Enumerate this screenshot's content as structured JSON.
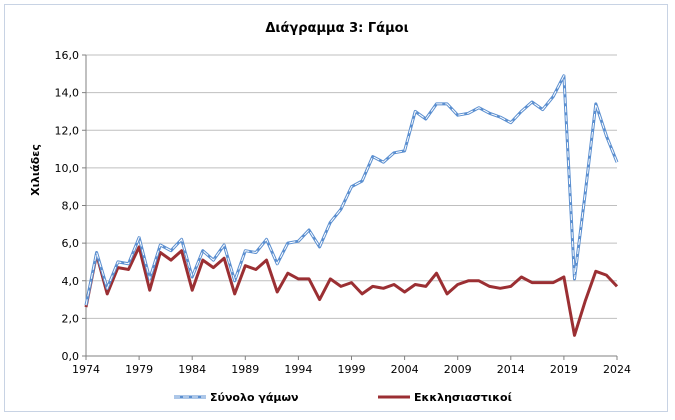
{
  "chart_data": {
    "type": "line",
    "title": "Διάγραμμα 3: Γάμοι",
    "xlabel": "",
    "ylabel": "Χιλιάδες",
    "xlim": [
      1974,
      2024
    ],
    "ylim": [
      0,
      16
    ],
    "x_ticks": [
      "1974",
      "1979",
      "1984",
      "1989",
      "1994",
      "1999",
      "2004",
      "2009",
      "2014",
      "2019",
      "2024"
    ],
    "y_ticks": [
      "0,0",
      "2,0",
      "4,0",
      "6,0",
      "8,0",
      "10,0",
      "12,0",
      "14,0",
      "16,0"
    ],
    "legend_position": "bottom",
    "x": [
      1974,
      1975,
      1976,
      1977,
      1978,
      1979,
      1980,
      1981,
      1982,
      1983,
      1984,
      1985,
      1986,
      1987,
      1988,
      1989,
      1990,
      1991,
      1992,
      1993,
      1994,
      1995,
      1996,
      1997,
      1998,
      1999,
      2000,
      2001,
      2002,
      2003,
      2004,
      2005,
      2006,
      2007,
      2008,
      2009,
      2010,
      2011,
      2012,
      2013,
      2014,
      2015,
      2016,
      2017,
      2018,
      2019,
      2020,
      2021,
      2022,
      2023,
      2024
    ],
    "series": [
      {
        "name": "Σύνολο γάμων",
        "color": "#5b8fd0",
        "dash": true,
        "values": [
          2.7,
          5.5,
          3.6,
          5.0,
          4.9,
          6.3,
          4.1,
          5.9,
          5.6,
          6.2,
          4.2,
          5.6,
          5.1,
          5.9,
          4.0,
          5.6,
          5.5,
          6.2,
          4.9,
          6.0,
          6.1,
          6.7,
          5.8,
          7.1,
          7.8,
          9.0,
          9.3,
          10.6,
          10.3,
          10.8,
          10.9,
          13.0,
          12.6,
          13.4,
          13.4,
          12.8,
          12.9,
          13.2,
          12.9,
          12.7,
          12.4,
          13.0,
          13.5,
          13.1,
          13.8,
          14.9,
          4.1,
          8.6,
          13.4,
          11.7,
          10.3
        ]
      },
      {
        "name": "Εκκλησιαστικοί",
        "color": "#9b2f33",
        "dash": false,
        "values": [
          2.6,
          5.4,
          3.3,
          4.7,
          4.6,
          5.8,
          3.5,
          5.5,
          5.1,
          5.6,
          3.5,
          5.1,
          4.7,
          5.2,
          3.3,
          4.8,
          4.6,
          5.1,
          3.4,
          4.4,
          4.1,
          4.1,
          3.0,
          4.1,
          3.7,
          3.9,
          3.3,
          3.7,
          3.6,
          3.8,
          3.4,
          3.8,
          3.7,
          4.4,
          3.3,
          3.8,
          4.0,
          4.0,
          3.7,
          3.6,
          3.7,
          4.2,
          3.9,
          3.9,
          3.9,
          4.2,
          1.1,
          2.9,
          4.5,
          4.3,
          3.7
        ]
      }
    ]
  }
}
